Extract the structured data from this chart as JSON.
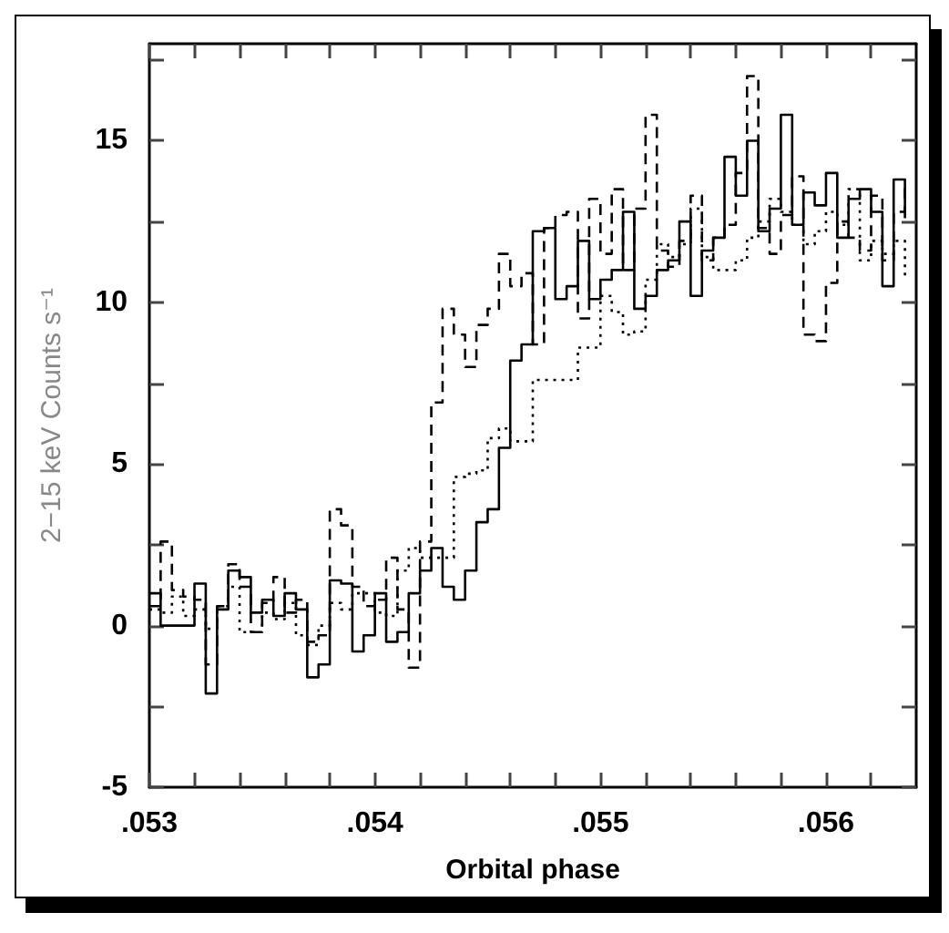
{
  "chart_data": {
    "type": "step",
    "xlabel": "Orbital phase",
    "ylabel": "2−15 keV Counts s⁻¹",
    "x": [
      0.053,
      0.05305,
      0.0531,
      0.05315,
      0.0532,
      0.05325,
      0.0533,
      0.05335,
      0.0534,
      0.05345,
      0.0535,
      0.05355,
      0.0536,
      0.05365,
      0.0537,
      0.05375,
      0.0538,
      0.05385,
      0.0539,
      0.05395,
      0.054,
      0.05405,
      0.0541,
      0.05415,
      0.0542,
      0.05425,
      0.0543,
      0.05435,
      0.0544,
      0.05445,
      0.0545,
      0.05455,
      0.0546,
      0.05465,
      0.0547,
      0.05475,
      0.0548,
      0.05485,
      0.0549,
      0.05495,
      0.055,
      0.05505,
      0.0551,
      0.05515,
      0.0552,
      0.05525,
      0.0553,
      0.05535,
      0.0554,
      0.05545,
      0.0555,
      0.05555,
      0.0556,
      0.05565,
      0.0557,
      0.05575,
      0.0558,
      0.05585,
      0.0559,
      0.05595,
      0.056,
      0.05605,
      0.0561,
      0.05615,
      0.0562,
      0.05625,
      0.0563,
      0.05635
    ],
    "series": [
      {
        "color": "#000000",
        "line_style": "solid",
        "values": [
          1.0,
          0,
          0,
          0,
          1.3,
          -2.1,
          0.5,
          1.7,
          1.5,
          0.4,
          0.8,
          0.3,
          1.0,
          0.5,
          -1.6,
          -1.2,
          1.4,
          1.3,
          -0.8,
          -0.3,
          1.0,
          -0.5,
          -0.2,
          1.0,
          1.7,
          2.4,
          1.2,
          0.8,
          1.7,
          3.2,
          3.6,
          5.5,
          8.2,
          8.7,
          12.2,
          12.3,
          10.1,
          10.5,
          11.9,
          10.1,
          10.7,
          11.0,
          12.8,
          9.8,
          10.2,
          11.0,
          11.3,
          12.5,
          10.2,
          11.6,
          12.0,
          14.5,
          13.3,
          15.0,
          12.2,
          12.9,
          15.8,
          12.4,
          13.4,
          13.0,
          14.0,
          12.0,
          13.2,
          13.5,
          12.8,
          10.5,
          13.8,
          12.6
        ]
      },
      {
        "color": "#000000",
        "line_style": "dashed",
        "values": [
          0.6,
          2.6,
          1.1,
          0.9,
          0.8,
          -1.2,
          0.6,
          1.9,
          1.2,
          -0.2,
          0.7,
          1.5,
          0.4,
          0.8,
          -0.5,
          -0.3,
          3.6,
          3.1,
          1.2,
          0.6,
          0.8,
          2.1,
          0.5,
          -1.3,
          2.6,
          6.9,
          9.8,
          9.0,
          8.0,
          9.3,
          9.8,
          11.5,
          10.5,
          10.9,
          8.7,
          12.3,
          12.7,
          12.8,
          9.5,
          13.2,
          11.5,
          13.5,
          11.0,
          12.9,
          15.8,
          11.6,
          11.1,
          11.9,
          13.3,
          11.3,
          12.0,
          12.4,
          14.0,
          17.0,
          12.3,
          11.5,
          12.7,
          13.9,
          9.0,
          8.8,
          10.6,
          12.5,
          12.0,
          11.6,
          13.3,
          11.3,
          12.8,
          13.8
        ]
      },
      {
        "color": "#000000",
        "line_style": "dotted",
        "values": [
          0.5,
          0.4,
          0.9,
          0.3,
          0.5,
          -0.1,
          0.6,
          1.2,
          -0.2,
          -0.2,
          0.4,
          0.2,
          0.7,
          -0.3,
          -0.6,
          0,
          0.7,
          0.5,
          1.0,
          1.0,
          0.4,
          0.3,
          1.7,
          2.4,
          2.1,
          2.1,
          2.1,
          4.6,
          4.7,
          4.8,
          5.8,
          6.1,
          5.7,
          5.7,
          7.6,
          7.6,
          7.6,
          7.6,
          8.6,
          8.6,
          10.2,
          9.7,
          9.0,
          9.1,
          10.7,
          11.8,
          11.4,
          11.8,
          12.9,
          11.4,
          11.0,
          11.0,
          11.3,
          12.0,
          12.5,
          13.2,
          12.8,
          12.4,
          11.8,
          12.2,
          12.8,
          12.4,
          13.5,
          11.3,
          11.9,
          11.5,
          11.9,
          10.7
        ]
      }
    ],
    "xlim": [
      0.053,
      0.0564
    ],
    "xticks": [
      {
        "value": 0.053,
        "label": ".053"
      },
      {
        "value": 0.0532,
        "label": null
      },
      {
        "value": 0.0534,
        "label": null
      },
      {
        "value": 0.0536,
        "label": null
      },
      {
        "value": 0.0538,
        "label": null
      },
      {
        "value": 0.054,
        "label": ".054"
      },
      {
        "value": 0.0542,
        "label": null
      },
      {
        "value": 0.0544,
        "label": null
      },
      {
        "value": 0.0546,
        "label": null
      },
      {
        "value": 0.0548,
        "label": null
      },
      {
        "value": 0.055,
        "label": ".055"
      },
      {
        "value": 0.0552,
        "label": null
      },
      {
        "value": 0.0554,
        "label": null
      },
      {
        "value": 0.0556,
        "label": null
      },
      {
        "value": 0.0558,
        "label": null
      },
      {
        "value": 0.056,
        "label": ".056"
      },
      {
        "value": 0.0562,
        "label": null
      }
    ],
    "ylim": [
      -5,
      18
    ],
    "yticks": [
      -5,
      {
        "value": -2.5,
        "label": null
      },
      0,
      {
        "value": 2.5,
        "label": null
      },
      5,
      {
        "value": 7.5,
        "label": null
      },
      10,
      {
        "value": 12.5,
        "label": null
      },
      15,
      {
        "value": 17.5,
        "label": null
      }
    ],
    "grid": false,
    "marker": "none"
  }
}
